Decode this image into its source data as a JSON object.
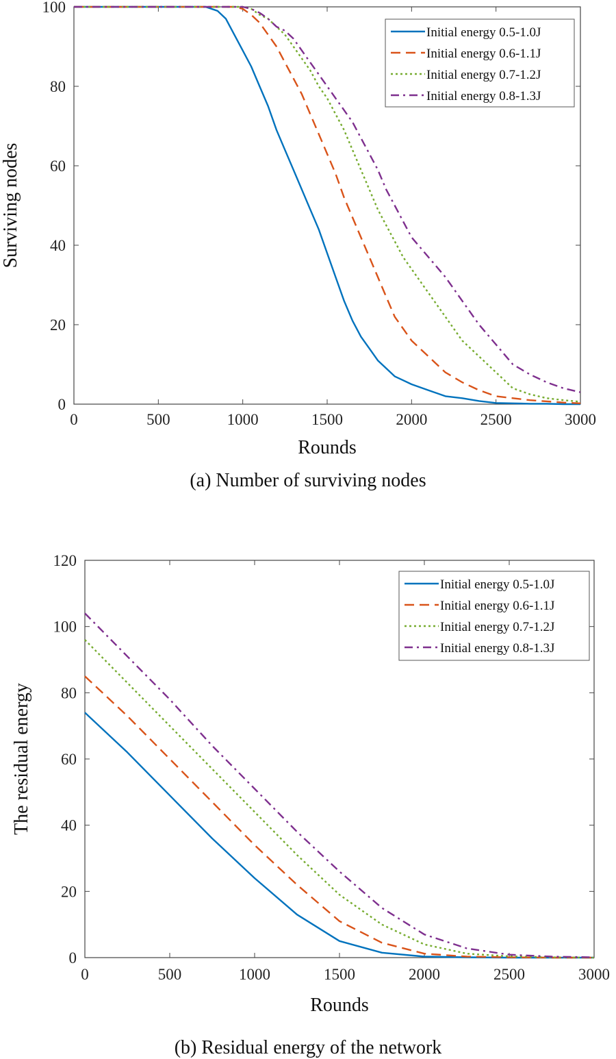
{
  "chart_data": [
    {
      "type": "line",
      "caption": "(a) Number of surviving nodes",
      "xlabel": "Rounds",
      "ylabel": "Surviving nodes",
      "xlim": [
        0,
        3000
      ],
      "ylim": [
        0,
        100
      ],
      "xticks": [
        0,
        500,
        1000,
        1500,
        2000,
        2500,
        3000
      ],
      "yticks": [
        0,
        20,
        40,
        60,
        80,
        100
      ],
      "legend_position": "top-right",
      "x": [
        0,
        780,
        850,
        900,
        950,
        1000,
        1050,
        1100,
        1150,
        1200,
        1250,
        1300,
        1350,
        1400,
        1450,
        1500,
        1550,
        1600,
        1650,
        1700,
        1750,
        1800,
        1850,
        1900,
        1950,
        2000,
        2100,
        2200,
        2300,
        2400,
        2500,
        2600,
        2700,
        2800,
        2900,
        3000
      ],
      "series": [
        {
          "name": "Initial energy 0.5-1.0J",
          "color": "#0072BD",
          "dash": "solid",
          "values": [
            100,
            100,
            99,
            97,
            93,
            89,
            85,
            80,
            75,
            69,
            64,
            59,
            54,
            49,
            44,
            38,
            32,
            26,
            21,
            17,
            14,
            11,
            9,
            7,
            6,
            5,
            3.5,
            2,
            1.5,
            0.8,
            0.3,
            0.2,
            0.1,
            0.1,
            0,
            0
          ]
        },
        {
          "name": "Initial energy 0.6-1.1J",
          "color": "#D95319",
          "dash": "dashed",
          "values": [
            100,
            100,
            100,
            100,
            100,
            99.5,
            98,
            96,
            93,
            90,
            86,
            82,
            78,
            73,
            68,
            63,
            58,
            52,
            47,
            42,
            37,
            32,
            27,
            22,
            19,
            16,
            12,
            8,
            5.5,
            3.5,
            2,
            1.5,
            1,
            0.7,
            0.4,
            0.2
          ]
        },
        {
          "name": "Initial energy 0.7-1.2J",
          "color": "#77AC30",
          "dash": "dotted",
          "values": [
            100,
            100,
            100,
            100,
            100,
            100,
            99.5,
            98,
            97,
            95,
            93,
            90,
            87,
            84,
            80,
            77,
            73,
            69,
            64,
            59,
            54,
            49,
            45,
            41,
            37,
            34,
            28,
            22,
            16,
            12,
            8,
            4,
            2.5,
            1.5,
            1,
            0.6
          ]
        },
        {
          "name": "Initial energy 0.8-1.3J",
          "color": "#7E2F8E",
          "dash": "dashdot",
          "values": [
            100,
            100,
            100,
            100,
            100,
            100,
            99.5,
            98.5,
            97,
            95,
            94,
            92,
            89,
            86,
            83,
            80,
            77,
            74,
            71,
            67,
            63,
            59,
            54,
            50,
            46,
            42,
            37,
            32,
            26,
            20,
            15,
            10,
            7.5,
            5.5,
            4,
            3
          ]
        }
      ]
    },
    {
      "type": "line",
      "caption": "(b) Residual energy of the network",
      "xlabel": "Rounds",
      "ylabel": "The residual energy",
      "xlim": [
        0,
        3000
      ],
      "ylim": [
        0,
        120
      ],
      "xticks": [
        0,
        500,
        1000,
        1500,
        2000,
        2500,
        3000
      ],
      "yticks": [
        0,
        20,
        40,
        60,
        80,
        100,
        120
      ],
      "legend_position": "top-right",
      "x": [
        0,
        250,
        500,
        750,
        1000,
        1250,
        1500,
        1750,
        2000,
        2250,
        2500,
        2750,
        3000
      ],
      "series": [
        {
          "name": "Initial energy 0.5-1.0J",
          "color": "#0072BD",
          "dash": "solid",
          "values": [
            74,
            62,
            49,
            36,
            24,
            13,
            5,
            1.5,
            0.3,
            0.1,
            0,
            0,
            0
          ]
        },
        {
          "name": "Initial energy 0.6-1.1J",
          "color": "#D95319",
          "dash": "dashed",
          "values": [
            85,
            73,
            60,
            47,
            34,
            22,
            11,
            4.5,
            1.2,
            0.3,
            0.1,
            0,
            0
          ]
        },
        {
          "name": "Initial energy 0.7-1.2J",
          "color": "#77AC30",
          "dash": "dotted",
          "values": [
            96,
            83,
            70,
            57,
            44,
            31,
            19,
            10,
            4,
            1.2,
            0.4,
            0.1,
            0
          ]
        },
        {
          "name": "Initial energy 0.8-1.3J",
          "color": "#7E2F8E",
          "dash": "dashdot",
          "values": [
            104,
            91,
            78,
            64,
            51,
            38,
            26,
            15,
            7,
            2.8,
            0.9,
            0.3,
            0.1
          ]
        }
      ]
    }
  ]
}
